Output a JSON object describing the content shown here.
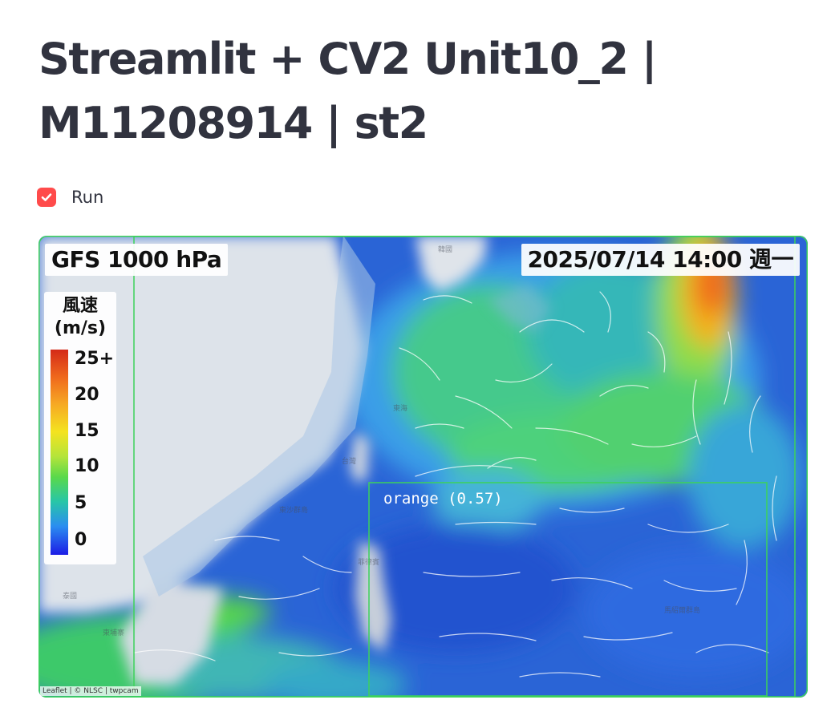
{
  "page": {
    "title": "Streamlit + CV2 Unit10_2 | M11208914 | st2"
  },
  "run_checkbox": {
    "label": "Run",
    "checked": true,
    "accent_color": "#ff4b4b"
  },
  "video_frame": {
    "model_label": "GFS 1000 hPa",
    "timestamp_label": "2025/07/14 14:00 週一",
    "legend": {
      "title": "風速\n(m/s)",
      "ticks": [
        "25+",
        "20",
        "15",
        "10",
        "5",
        "0"
      ]
    },
    "detections": [
      {
        "label": "orange (0.57)",
        "color": "#3cd25a"
      }
    ],
    "attribution": "Leaflet | © NLSC | twpcam",
    "frame_border_color": "#3cd25a"
  }
}
